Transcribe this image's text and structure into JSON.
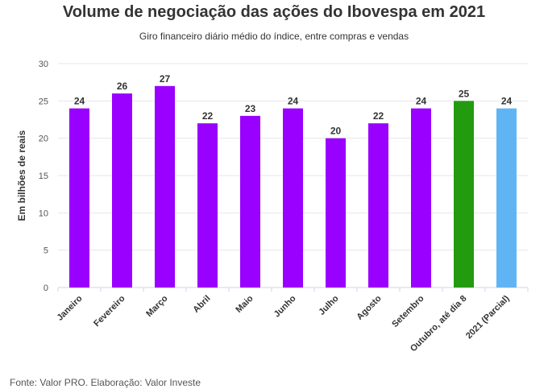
{
  "title": "Volume de negociação das ações do Ibovespa em 2021",
  "subtitle": "Giro financeiro diário médio do índice, entre compras e vendas",
  "source": "Fonte: Valor PRO. Elaboração: Valor Investe",
  "chart_data": {
    "type": "bar",
    "title": "Volume de negociação das ações do Ibovespa em 2021",
    "subtitle": "Giro financeiro diário médio do índice, entre compras e vendas",
    "xlabel": "",
    "ylabel": "Em bilhões de reais",
    "ylim": [
      0,
      30
    ],
    "yticks": [
      0,
      5,
      10,
      15,
      20,
      25,
      30
    ],
    "grid": true,
    "categories": [
      "Janeiro",
      "Fevereiro",
      "Março",
      "Abril",
      "Maio",
      "Junho",
      "Julho",
      "Agosto",
      "Setembro",
      "Outubro, até dia 8",
      "2021 (Parcial)"
    ],
    "values": [
      24,
      26,
      27,
      22,
      23,
      24,
      20,
      22,
      24,
      25,
      24
    ],
    "colors": [
      "#9900ff",
      "#9900ff",
      "#9900ff",
      "#9900ff",
      "#9900ff",
      "#9900ff",
      "#9900ff",
      "#9900ff",
      "#9900ff",
      "#229b0e",
      "#61b4f3"
    ]
  }
}
